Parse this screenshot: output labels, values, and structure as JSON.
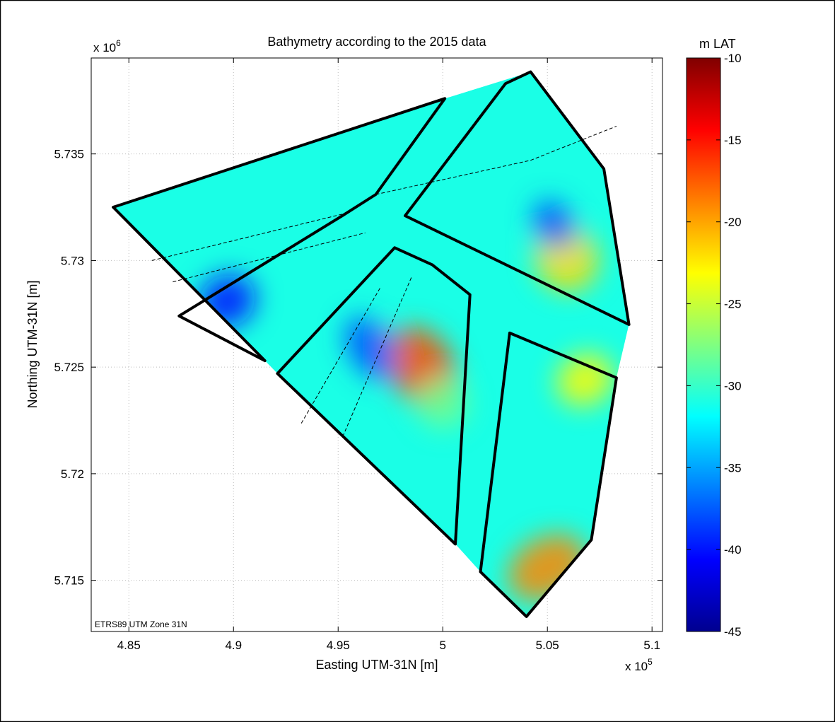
{
  "chart_data": {
    "type": "heatmap",
    "title": "Bathymetry according to the 2015 data",
    "xlabel": "Easting UTM-31N [m]",
    "ylabel": "Northing UTM-31N [m]",
    "x_exponent_label": "x 10",
    "x_exponent": "5",
    "y_exponent_label": "x 10",
    "y_exponent": "6",
    "xlim": [
      483200,
      510500
    ],
    "ylim": [
      5712600,
      5739500
    ],
    "x_ticks": [
      485000,
      490000,
      495000,
      500000,
      505000,
      510000
    ],
    "x_tick_labels": [
      "4.85",
      "4.9",
      "4.95",
      "5",
      "5.05",
      "5.1"
    ],
    "y_ticks": [
      5715000,
      5720000,
      5725000,
      5730000,
      5735000
    ],
    "y_tick_labels": [
      "5.715",
      "5.72",
      "5.725",
      "5.73",
      "5.735"
    ],
    "grid": true,
    "annotation": "ETRS89 UTM Zone 31N",
    "colorbar": {
      "label": "m LAT",
      "range": [
        -45,
        -10
      ],
      "ticks": [
        -10,
        -15,
        -20,
        -25,
        -30,
        -35,
        -40,
        -45
      ],
      "tick_labels": [
        "-10",
        "-15",
        "-20",
        "-25",
        "-30",
        "-35",
        "-40",
        "-45"
      ],
      "colormap": [
        "#00008f",
        "#0000ff",
        "#0080ff",
        "#00ffff",
        "#80ff80",
        "#ffff00",
        "#ff8000",
        "#ff0000",
        "#800000"
      ]
    },
    "survey_boundary": [
      [
        484250,
        5732500
      ],
      [
        500100,
        5737600
      ],
      [
        504200,
        5738850
      ],
      [
        507700,
        5734300
      ],
      [
        508900,
        5727000
      ],
      [
        508300,
        5724500
      ],
      [
        507100,
        5716900
      ],
      [
        504000,
        5713300
      ],
      [
        501800,
        5715400
      ],
      [
        500600,
        5716700
      ],
      [
        492100,
        5724700
      ],
      [
        491500,
        5725300
      ]
    ],
    "sub_areas": [
      [
        [
          484250,
          5732500
        ],
        [
          500100,
          5737600
        ],
        [
          496800,
          5733100
        ],
        [
          495200,
          5732100
        ],
        [
          487400,
          5727400
        ],
        [
          491500,
          5725300
        ]
      ],
      [
        [
          498200,
          5732100
        ],
        [
          503000,
          5738300
        ],
        [
          504200,
          5738850
        ],
        [
          507700,
          5734300
        ],
        [
          508900,
          5727000
        ]
      ],
      [
        [
          492100,
          5724700
        ],
        [
          497700,
          5730600
        ],
        [
          499500,
          5729800
        ],
        [
          501300,
          5728400
        ],
        [
          500600,
          5716700
        ]
      ],
      [
        [
          501800,
          5715400
        ],
        [
          503200,
          5726600
        ],
        [
          508300,
          5724500
        ],
        [
          507100,
          5716900
        ],
        [
          504000,
          5713300
        ]
      ]
    ],
    "channel_lines": [
      [
        [
          486100,
          5730000
        ],
        [
          495300,
          5732200
        ]
      ],
      [
        [
          487100,
          5729000
        ],
        [
          496300,
          5731300
        ]
      ],
      [
        [
          496800,
          5733100
        ],
        [
          504200,
          5734700
        ],
        [
          508300,
          5736300
        ]
      ],
      [
        [
          497000,
          5728700
        ],
        [
          493200,
          5722300
        ]
      ],
      [
        [
          498500,
          5729200
        ],
        [
          495200,
          5721700
        ]
      ]
    ],
    "depth_features": [
      {
        "x": 499000,
        "y": 5725000,
        "depth": -17,
        "sx": 1500,
        "sy": 2000
      },
      {
        "x": 505900,
        "y": 5730100,
        "depth": -22,
        "sx": 1500,
        "sy": 1600
      },
      {
        "x": 505000,
        "y": 5715600,
        "depth": -19,
        "sx": 2000,
        "sy": 1400
      },
      {
        "x": 506800,
        "y": 5724400,
        "depth": -23,
        "sx": 1400,
        "sy": 1200
      },
      {
        "x": 489700,
        "y": 5728100,
        "depth": -40,
        "sx": 1400,
        "sy": 1200
      },
      {
        "x": 496500,
        "y": 5725900,
        "depth": -38,
        "sx": 1000,
        "sy": 1600
      },
      {
        "x": 505300,
        "y": 5731700,
        "depth": -38,
        "sx": 900,
        "sy": 1200
      },
      {
        "x": 500000,
        "y": 5723300,
        "depth": -28,
        "sx": 1200,
        "sy": 1200
      }
    ],
    "base_depth": -31
  }
}
